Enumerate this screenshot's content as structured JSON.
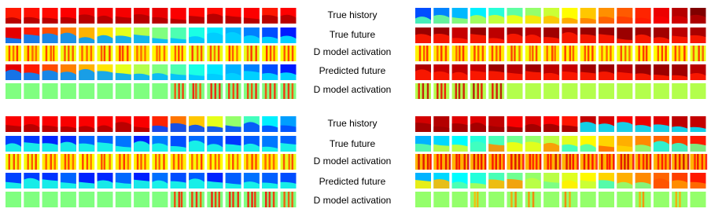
{
  "groups": [
    {
      "labels": [
        "True history",
        "True future",
        "D model activation",
        "Predicted future",
        "D model activation"
      ]
    },
    {
      "labels": [
        "True history",
        "True future",
        "D model activation",
        "Predicted future",
        "D model activation"
      ]
    }
  ]
}
